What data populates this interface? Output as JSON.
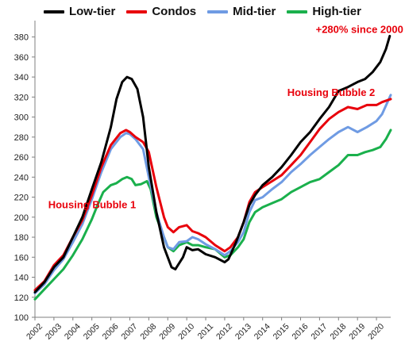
{
  "chart_data": {
    "type": "line",
    "title": "",
    "xlabel": "",
    "ylabel": "",
    "ylim": [
      100,
      390
    ],
    "xlim": [
      2002,
      2020.75
    ],
    "yticks": [
      100,
      120,
      140,
      160,
      180,
      200,
      220,
      240,
      260,
      280,
      300,
      320,
      340,
      360,
      380
    ],
    "xticks": [
      2002,
      2003,
      2004,
      2005,
      2006,
      2007,
      2008,
      2009,
      2010,
      2011,
      2012,
      2013,
      2014,
      2015,
      2016,
      2017,
      2018,
      2019,
      2020
    ],
    "grid": false,
    "legend": "top",
    "series": [
      {
        "name": "Low-tier",
        "color": "#000000",
        "points": [
          [
            2002.0,
            125
          ],
          [
            2002.5,
            135
          ],
          [
            2003.0,
            150
          ],
          [
            2003.5,
            160
          ],
          [
            2004.0,
            180
          ],
          [
            2004.5,
            200
          ],
          [
            2005.0,
            228
          ],
          [
            2005.5,
            255
          ],
          [
            2006.0,
            290
          ],
          [
            2006.3,
            318
          ],
          [
            2006.6,
            335
          ],
          [
            2006.85,
            340
          ],
          [
            2007.1,
            338
          ],
          [
            2007.4,
            328
          ],
          [
            2007.7,
            300
          ],
          [
            2008.0,
            250
          ],
          [
            2008.4,
            205
          ],
          [
            2008.8,
            170
          ],
          [
            2009.2,
            150
          ],
          [
            2009.4,
            148
          ],
          [
            2009.8,
            160
          ],
          [
            2010.0,
            170
          ],
          [
            2010.3,
            167
          ],
          [
            2010.6,
            168
          ],
          [
            2011.0,
            163
          ],
          [
            2011.5,
            160
          ],
          [
            2012.0,
            155
          ],
          [
            2012.2,
            158
          ],
          [
            2012.6,
            175
          ],
          [
            2013.0,
            195
          ],
          [
            2013.3,
            212
          ],
          [
            2013.6,
            222
          ],
          [
            2014.0,
            232
          ],
          [
            2014.5,
            240
          ],
          [
            2015.0,
            250
          ],
          [
            2015.5,
            262
          ],
          [
            2016.0,
            275
          ],
          [
            2016.5,
            285
          ],
          [
            2017.0,
            298
          ],
          [
            2017.5,
            310
          ],
          [
            2018.0,
            326
          ],
          [
            2018.5,
            330
          ],
          [
            2019.0,
            335
          ],
          [
            2019.4,
            338
          ],
          [
            2019.8,
            345
          ],
          [
            2020.2,
            355
          ],
          [
            2020.5,
            368
          ],
          [
            2020.7,
            381
          ]
        ]
      },
      {
        "name": "Condos",
        "color": "#e8000b",
        "points": [
          [
            2002.0,
            127
          ],
          [
            2002.5,
            136
          ],
          [
            2003.0,
            152
          ],
          [
            2003.5,
            162
          ],
          [
            2004.0,
            180
          ],
          [
            2004.5,
            197
          ],
          [
            2005.0,
            222
          ],
          [
            2005.5,
            250
          ],
          [
            2006.0,
            272
          ],
          [
            2006.5,
            284
          ],
          [
            2006.8,
            287
          ],
          [
            2007.0,
            285
          ],
          [
            2007.3,
            280
          ],
          [
            2007.7,
            275
          ],
          [
            2008.0,
            265
          ],
          [
            2008.4,
            230
          ],
          [
            2008.8,
            200
          ],
          [
            2009.0,
            190
          ],
          [
            2009.3,
            185
          ],
          [
            2009.6,
            190
          ],
          [
            2010.0,
            192
          ],
          [
            2010.3,
            186
          ],
          [
            2010.6,
            184
          ],
          [
            2011.0,
            180
          ],
          [
            2011.5,
            172
          ],
          [
            2012.0,
            166
          ],
          [
            2012.3,
            170
          ],
          [
            2012.7,
            180
          ],
          [
            2013.0,
            195
          ],
          [
            2013.3,
            215
          ],
          [
            2013.6,
            225
          ],
          [
            2014.0,
            230
          ],
          [
            2014.5,
            236
          ],
          [
            2015.0,
            242
          ],
          [
            2015.5,
            252
          ],
          [
            2016.0,
            262
          ],
          [
            2016.5,
            275
          ],
          [
            2017.0,
            288
          ],
          [
            2017.5,
            298
          ],
          [
            2018.0,
            305
          ],
          [
            2018.5,
            310
          ],
          [
            2019.0,
            308
          ],
          [
            2019.5,
            312
          ],
          [
            2020.0,
            312
          ],
          [
            2020.3,
            315
          ],
          [
            2020.75,
            318
          ]
        ]
      },
      {
        "name": "Mid-tier",
        "color": "#6f9be3",
        "points": [
          [
            2002.0,
            124
          ],
          [
            2002.5,
            133
          ],
          [
            2003.0,
            147
          ],
          [
            2003.5,
            158
          ],
          [
            2004.0,
            175
          ],
          [
            2004.5,
            193
          ],
          [
            2005.0,
            218
          ],
          [
            2005.5,
            245
          ],
          [
            2006.0,
            268
          ],
          [
            2006.5,
            280
          ],
          [
            2006.8,
            284
          ],
          [
            2007.0,
            283
          ],
          [
            2007.3,
            278
          ],
          [
            2007.7,
            268
          ],
          [
            2008.0,
            240
          ],
          [
            2008.4,
            205
          ],
          [
            2008.8,
            180
          ],
          [
            2009.0,
            170
          ],
          [
            2009.3,
            168
          ],
          [
            2009.6,
            175
          ],
          [
            2010.0,
            176
          ],
          [
            2010.3,
            180
          ],
          [
            2010.6,
            178
          ],
          [
            2011.0,
            173
          ],
          [
            2011.5,
            168
          ],
          [
            2012.0,
            162
          ],
          [
            2012.3,
            166
          ],
          [
            2012.7,
            175
          ],
          [
            2013.0,
            185
          ],
          [
            2013.3,
            205
          ],
          [
            2013.6,
            217
          ],
          [
            2014.0,
            220
          ],
          [
            2014.5,
            228
          ],
          [
            2015.0,
            235
          ],
          [
            2015.5,
            245
          ],
          [
            2016.0,
            253
          ],
          [
            2016.5,
            262
          ],
          [
            2017.0,
            270
          ],
          [
            2017.5,
            278
          ],
          [
            2018.0,
            285
          ],
          [
            2018.5,
            290
          ],
          [
            2019.0,
            285
          ],
          [
            2019.5,
            290
          ],
          [
            2020.0,
            296
          ],
          [
            2020.3,
            303
          ],
          [
            2020.75,
            322
          ]
        ]
      },
      {
        "name": "High-tier",
        "color": "#1ab04c",
        "points": [
          [
            2002.0,
            118
          ],
          [
            2002.5,
            128
          ],
          [
            2003.0,
            138
          ],
          [
            2003.5,
            148
          ],
          [
            2004.0,
            162
          ],
          [
            2004.5,
            178
          ],
          [
            2005.0,
            198
          ],
          [
            2005.3,
            212
          ],
          [
            2005.6,
            225
          ],
          [
            2006.0,
            232
          ],
          [
            2006.3,
            234
          ],
          [
            2006.6,
            238
          ],
          [
            2006.85,
            240
          ],
          [
            2007.1,
            238
          ],
          [
            2007.3,
            232
          ],
          [
            2007.6,
            233
          ],
          [
            2007.9,
            236
          ],
          [
            2008.1,
            228
          ],
          [
            2008.4,
            200
          ],
          [
            2008.8,
            180
          ],
          [
            2009.0,
            170
          ],
          [
            2009.3,
            166
          ],
          [
            2009.6,
            172
          ],
          [
            2010.0,
            175
          ],
          [
            2010.3,
            172
          ],
          [
            2010.6,
            172
          ],
          [
            2011.0,
            170
          ],
          [
            2011.5,
            168
          ],
          [
            2012.0,
            160
          ],
          [
            2012.3,
            162
          ],
          [
            2012.7,
            170
          ],
          [
            2013.0,
            178
          ],
          [
            2013.3,
            195
          ],
          [
            2013.6,
            205
          ],
          [
            2014.0,
            210
          ],
          [
            2014.5,
            214
          ],
          [
            2015.0,
            218
          ],
          [
            2015.5,
            225
          ],
          [
            2016.0,
            230
          ],
          [
            2016.5,
            235
          ],
          [
            2017.0,
            238
          ],
          [
            2017.5,
            245
          ],
          [
            2018.0,
            252
          ],
          [
            2018.5,
            262
          ],
          [
            2019.0,
            262
          ],
          [
            2019.4,
            265
          ],
          [
            2019.8,
            267
          ],
          [
            2020.2,
            270
          ],
          [
            2020.5,
            278
          ],
          [
            2020.75,
            287
          ]
        ]
      }
    ],
    "annotations": [
      {
        "text": "Housing Bubble 1",
        "x": 2002.7,
        "y": 209,
        "color": "#e8000b"
      },
      {
        "text": "Housing Bubble 2",
        "x": 2015.3,
        "y": 321,
        "color": "#e8000b"
      },
      {
        "text": "+280% since 2000",
        "x": 2016.8,
        "y": 384,
        "color": "#e8000b"
      }
    ]
  }
}
